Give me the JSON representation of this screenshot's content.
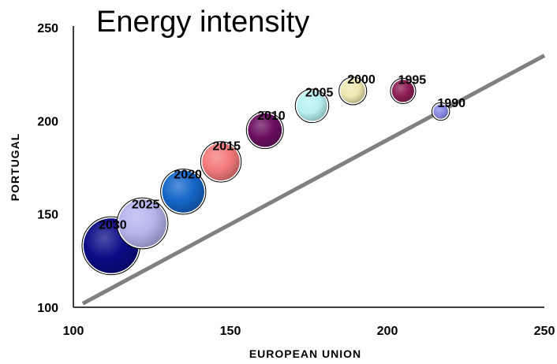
{
  "chart_data": {
    "type": "bubble",
    "title": "Energy intensity",
    "xlabel": "EUROPEAN UNION",
    "ylabel": "PORTUGAL",
    "xlim": [
      100,
      250
    ],
    "ylim": [
      100,
      250
    ],
    "xticks": [
      100,
      150,
      200,
      250
    ],
    "yticks": [
      100,
      150,
      200,
      250
    ],
    "grid": false,
    "reference_line": {
      "description": "diagonal line",
      "x": [
        103,
        250
      ],
      "y": [
        102,
        235
      ],
      "color": "#808080"
    },
    "points": [
      {
        "label": "1990",
        "x": 217,
        "y": 205,
        "size": 0.25,
        "color": "#8a8ae6"
      },
      {
        "label": "1995",
        "x": 205,
        "y": 216,
        "size": 0.38,
        "color": "#8e1f55"
      },
      {
        "label": "2000",
        "x": 189,
        "y": 216,
        "size": 0.42,
        "color": "#efe8b0"
      },
      {
        "label": "2005",
        "x": 176,
        "y": 208,
        "size": 0.52,
        "color": "#b8f2f2"
      },
      {
        "label": "2010",
        "x": 161,
        "y": 195,
        "size": 0.58,
        "color": "#6b0f60"
      },
      {
        "label": "2015",
        "x": 147,
        "y": 178,
        "size": 0.64,
        "color": "#f47a7a"
      },
      {
        "label": "2020",
        "x": 135,
        "y": 162,
        "size": 0.72,
        "color": "#1566c9"
      },
      {
        "label": "2025",
        "x": 122,
        "y": 145,
        "size": 0.82,
        "color": "#b4b4ee"
      },
      {
        "label": "2030",
        "x": 112,
        "y": 133,
        "size": 0.94,
        "color": "#0b0b86"
      }
    ]
  }
}
